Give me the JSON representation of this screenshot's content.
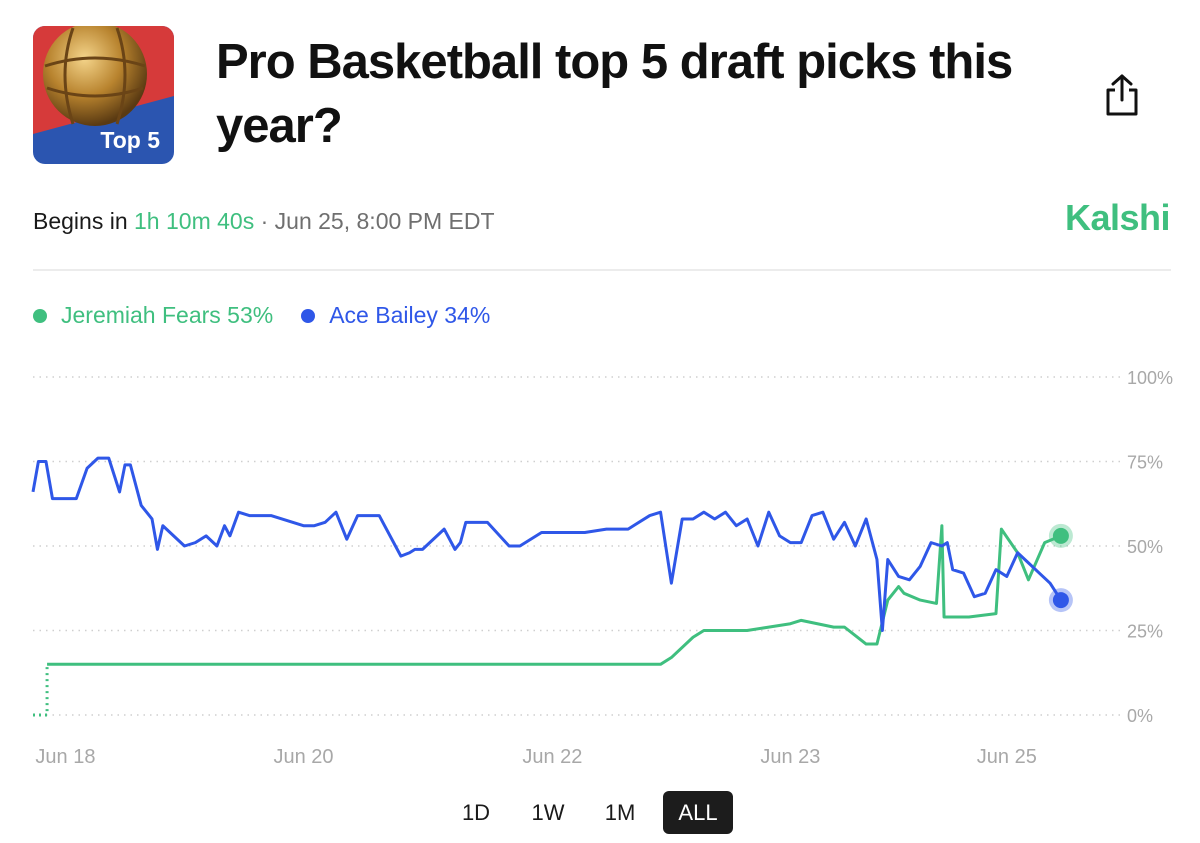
{
  "header": {
    "title": "Pro Basketball top 5 draft picks this year?",
    "thumbnail_label": "Top 5"
  },
  "meta": {
    "prefix": "Begins in",
    "countdown": "1h 10m 40s",
    "separator": "·",
    "datetime": "Jun 25, 8:00 PM EDT"
  },
  "brand": "Kalshi",
  "colors": {
    "green": "#3fbf7f",
    "blue": "#2f57e8",
    "grid": "#cfcfcf",
    "axis_label": "#a8a8a8"
  },
  "icons": {
    "share": "share-icon",
    "thumbnail": "basketball-icon"
  },
  "ranges": {
    "selected": "ALL",
    "options": [
      "1D",
      "1W",
      "1M",
      "ALL"
    ]
  },
  "chart_data": {
    "type": "line",
    "title": "",
    "xlabel": "",
    "ylabel": "",
    "ylim": [
      0,
      100
    ],
    "y_ticks": [
      0,
      25,
      50,
      75,
      100
    ],
    "y_tick_labels": [
      "0%",
      "25%",
      "50%",
      "75%",
      "100%"
    ],
    "y_axis_side": "right",
    "grid": "dotted horizontal",
    "legend_position": "top-left",
    "xlim": [
      0,
      100
    ],
    "x_ticks": [
      {
        "label": "Jun 18",
        "x": 3
      },
      {
        "label": "Jun 20",
        "x": 25
      },
      {
        "label": "Jun 22",
        "x": 48
      },
      {
        "label": "Jun 23",
        "x": 70
      },
      {
        "label": "Jun 25",
        "x": 90
      }
    ],
    "series": [
      {
        "name": "Jeremiah Fears",
        "legend_label": "Jeremiah Fears 53%",
        "current": 53,
        "color": "#3fbf7f",
        "start_dotted_until_x": 1.3,
        "x": [
          0,
          1.3,
          1.3,
          16,
          40,
          58,
          59,
          61,
          62,
          66,
          68,
          70,
          71,
          74,
          75,
          77,
          78,
          79,
          80,
          80.5,
          82,
          83.5,
          84,
          84.2,
          86.5,
          89,
          89.5,
          91,
          92,
          93.5,
          95
        ],
        "values": [
          0,
          0,
          15,
          15,
          15,
          15,
          17,
          23,
          25,
          25,
          26,
          27,
          28,
          26,
          26,
          21,
          21,
          34,
          38,
          36,
          34,
          33,
          56,
          29,
          29,
          30,
          55,
          48,
          40,
          51,
          53
        ]
      },
      {
        "name": "Ace Bailey",
        "legend_label": "Ace Bailey 34%",
        "current": 34,
        "color": "#2f57e8",
        "x": [
          0,
          0.5,
          1.2,
          1.8,
          3,
          4,
          5,
          6,
          7,
          8,
          8.5,
          9,
          9.5,
          10,
          11,
          11.5,
          12,
          13,
          14,
          15,
          16,
          17,
          17.7,
          18.2,
          19,
          20,
          22,
          25,
          26,
          27,
          28,
          29,
          30,
          31,
          32,
          34,
          34.8,
          35.3,
          36,
          38,
          39,
          39.5,
          40,
          41,
          42,
          44,
          45,
          46,
          47,
          48,
          49,
          50,
          51,
          53,
          55,
          57,
          58,
          59,
          60,
          61,
          62,
          63,
          64,
          65,
          66,
          67,
          68,
          69,
          70,
          71,
          72,
          73,
          74,
          75,
          76,
          77,
          78,
          78.5,
          79,
          80,
          81,
          82,
          83,
          84,
          84.5,
          85,
          86,
          87,
          88,
          89,
          90,
          91,
          92,
          93,
          94,
          95
        ],
        "values": [
          66,
          75,
          75,
          64,
          64,
          64,
          73,
          76,
          76,
          66,
          74,
          74,
          68,
          62,
          58,
          49,
          56,
          53,
          50,
          51,
          53,
          50,
          56,
          53,
          60,
          59,
          59,
          56,
          56,
          57,
          60,
          52,
          59,
          59,
          59,
          47,
          48,
          49,
          49,
          55,
          49,
          51,
          57,
          57,
          57,
          50,
          50,
          52,
          54,
          54,
          54,
          54,
          54,
          55,
          55,
          59,
          60,
          39,
          58,
          58,
          60,
          58,
          60,
          56,
          58,
          50,
          60,
          53,
          51,
          51,
          59,
          60,
          52,
          57,
          50,
          58,
          46,
          25,
          46,
          41,
          40,
          44,
          51,
          50,
          51,
          43,
          42,
          35,
          36,
          43,
          41,
          48,
          45,
          42,
          39,
          34
        ]
      }
    ]
  }
}
